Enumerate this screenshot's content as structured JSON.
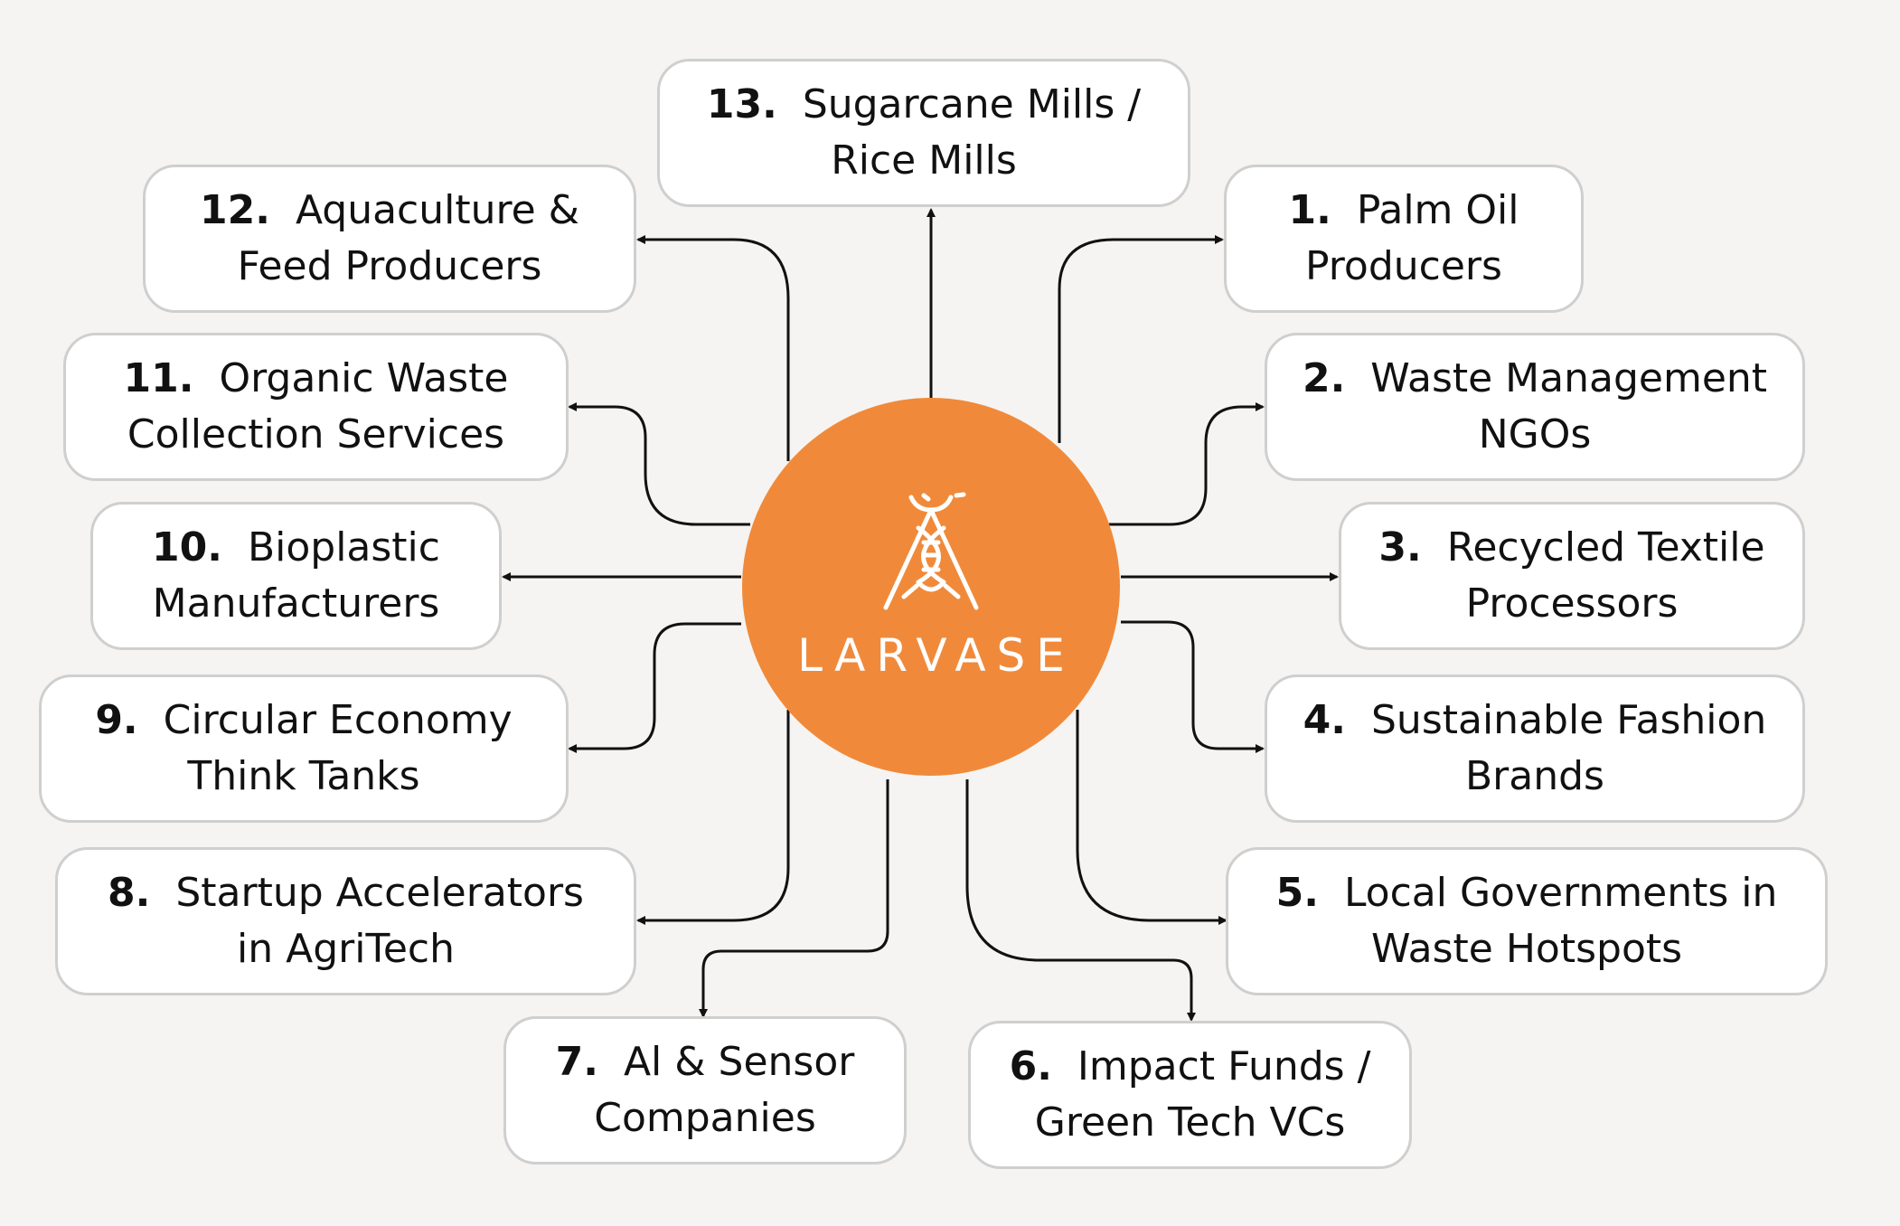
{
  "colors": {
    "hub": "#f08a3a",
    "line": "#111111",
    "box_border": "#cfcfcf",
    "box_fill": "#ffffff"
  },
  "hub": {
    "icon": "larva-dna-logo-icon",
    "name": "LARVASE"
  },
  "nodes": [
    {
      "num": "13.",
      "label": "Sugarcane Mills /\nRice Mills"
    },
    {
      "num": "1.",
      "label": "Palm Oil\nProducers"
    },
    {
      "num": "2.",
      "label": "Waste Management\nNGOs"
    },
    {
      "num": "3.",
      "label": "Recycled Textile\nProcessors"
    },
    {
      "num": "4.",
      "label": "Sustainable Fashion\nBrands"
    },
    {
      "num": "5.",
      "label": "Local Governments in\nWaste Hotspots"
    },
    {
      "num": "6.",
      "label": "Impact Funds /\nGreen Tech VCs"
    },
    {
      "num": "7.",
      "label": "Al & Sensor\nCompanies"
    },
    {
      "num": "8.",
      "label": "Startup Accelerators\nin AgriTech"
    },
    {
      "num": "9.",
      "label": "Circular Economy\nThink Tanks"
    },
    {
      "num": "10.",
      "label": "Bioplastic\nManufacturers"
    },
    {
      "num": "11.",
      "label": "Organic Waste\nCollection Services"
    },
    {
      "num": "12.",
      "label": "Aquaculture &\nFeed Producers"
    }
  ]
}
